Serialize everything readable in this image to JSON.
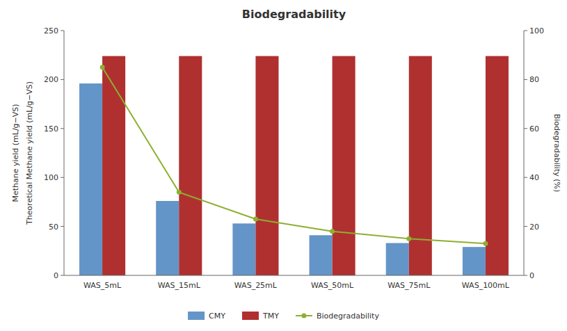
{
  "chart_data": {
    "type": "bar",
    "title": "Biodegradability",
    "categories": [
      "WAS_5mL",
      "WAS_15mL",
      "WAS_25mL",
      "WAS_50mL",
      "WAS_75mL",
      "WAS_100mL"
    ],
    "series": [
      {
        "name": "CMY",
        "color": "#6495C8",
        "values": [
          196,
          76,
          53,
          41,
          33,
          29
        ]
      },
      {
        "name": "TMY",
        "color": "#B03030",
        "values": [
          224,
          224,
          224,
          224,
          224,
          224
        ]
      },
      {
        "name": "Biodegradability",
        "color": "#8DB030",
        "values": [
          85,
          34,
          23,
          18,
          15,
          13
        ],
        "axis": "y2",
        "type": "line",
        "marker": "circle"
      }
    ],
    "ylabel": "Theoretical Methane yield (mL/g−VS)",
    "ylabel_outer": "Methane yield (mL/g−VS)",
    "y2label": "Biodegradability (%)",
    "ylim": [
      0,
      250
    ],
    "yticks": [
      0,
      50,
      100,
      150,
      200,
      250
    ],
    "y2lim": [
      0,
      100
    ],
    "y2ticks": [
      0,
      20,
      40,
      60,
      80,
      100
    ],
    "grid": false,
    "legend": "bottom"
  }
}
